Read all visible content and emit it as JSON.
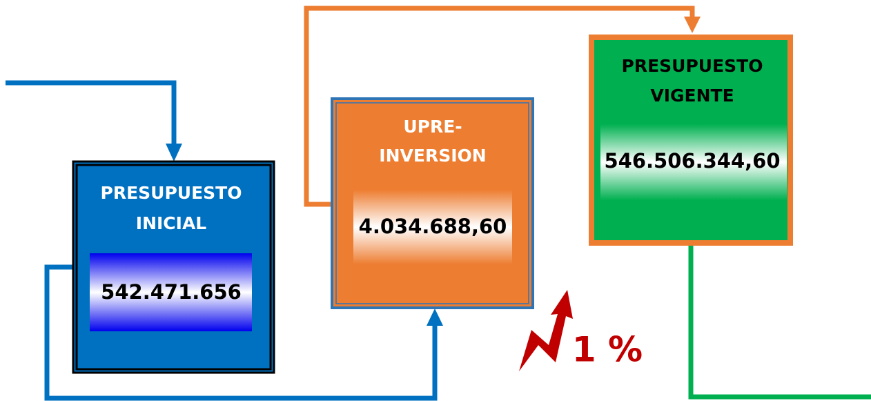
{
  "nodes": [
    {
      "title": [
        "PRESUPUESTO",
        "INICIAL"
      ],
      "value": "542.471.656"
    },
    {
      "title": [
        "UPRE-",
        "INVERSION"
      ],
      "value": "4.034.688,60"
    },
    {
      "title": [
        "PRESUPUESTO",
        "VIGENTE"
      ],
      "value": "546.506.344,60"
    }
  ],
  "indicator": "1 %"
}
